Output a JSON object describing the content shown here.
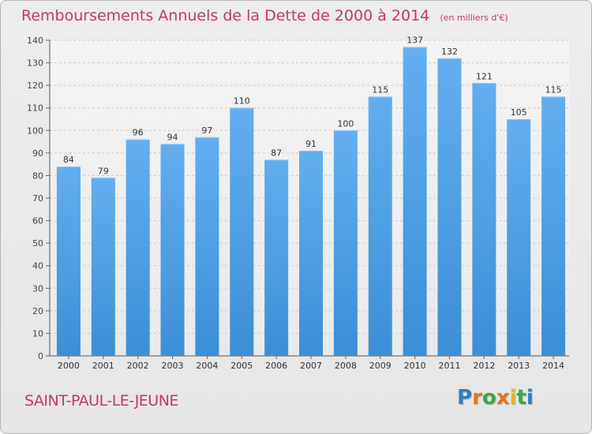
{
  "chart_data": {
    "type": "bar",
    "title": "Remboursements Annuels de la Dette de 2000 à 2014",
    "unit": "(en milliers d'€)",
    "categories": [
      "2000",
      "2001",
      "2002",
      "2003",
      "2004",
      "2005",
      "2006",
      "2007",
      "2008",
      "2009",
      "2010",
      "2011",
      "2012",
      "2013",
      "2014"
    ],
    "values": [
      84,
      79,
      96,
      94,
      97,
      110,
      87,
      91,
      100,
      115,
      137,
      132,
      121,
      105,
      115
    ],
    "data_labels": [
      "84",
      "79",
      "96",
      "94",
      "97",
      "110",
      "87",
      "91",
      "100",
      "115",
      "137",
      "132",
      "121",
      "105",
      "115"
    ],
    "ylim": [
      0,
      140
    ],
    "yticks": [
      "0",
      "10",
      "20",
      "30",
      "40",
      "50",
      "60",
      "70",
      "80",
      "90",
      "100",
      "110",
      "120",
      "130",
      "140"
    ],
    "grid": true,
    "xlabel": "",
    "ylabel": "",
    "bar_color": "#3b8fd6"
  },
  "footer": {
    "commune": "SAINT-PAUL-LE-JEUNE",
    "logo_letters": [
      "P",
      "r",
      "o",
      "x",
      "i",
      "t",
      "i"
    ],
    "logo_colors": [
      "#2f7fc1",
      "#e8731a",
      "#3aa845",
      "#e8731a",
      "#e8b71a",
      "#3aa845",
      "#2f7fc1"
    ]
  }
}
